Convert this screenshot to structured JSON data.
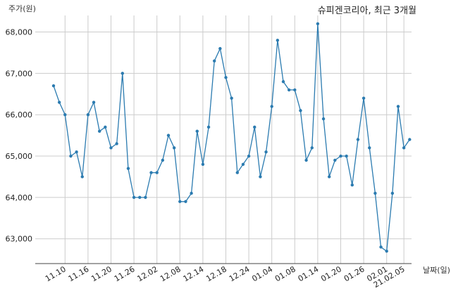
{
  "chart_data": {
    "type": "line",
    "title": "슈피겐코리아, 최근 3개월",
    "ylabel": "주가(원)",
    "xlabel": "날짜(일)",
    "ylim": [
      62400,
      68400
    ],
    "yticks": [
      63000,
      64000,
      65000,
      66000,
      67000,
      68000
    ],
    "ytick_labels": [
      "63,000",
      "64,000",
      "65,000",
      "66,000",
      "67,000",
      "68,000"
    ],
    "xticks": [
      "11.10",
      "11.16",
      "11.20",
      "11.26",
      "12.02",
      "12.08",
      "12.14",
      "12.18",
      "12.24",
      "01.04",
      "01.08",
      "01.14",
      "01.20",
      "01.26",
      "02.01",
      "21.02.05"
    ],
    "xtick_indices": [
      2,
      6,
      10,
      14,
      18,
      22,
      26,
      30,
      34,
      38,
      42,
      46,
      50,
      54,
      58,
      61
    ],
    "grid": true,
    "series": [
      {
        "values": [
          66700,
          66300,
          66000,
          65000,
          65100,
          64500,
          66000,
          66300,
          65600,
          65700,
          65200,
          65300,
          67000,
          64700,
          64000,
          64000,
          64000,
          64600,
          64600,
          64900,
          65500,
          65200,
          63900,
          63900,
          64100,
          65600,
          64800,
          65700,
          67300,
          67600,
          66900,
          66400,
          64600,
          64800,
          65000,
          65700,
          64500,
          65100,
          66200,
          67800,
          66800,
          66600,
          66600,
          66100,
          64900,
          65200,
          68200,
          65900,
          64500,
          64900,
          65000,
          65000,
          64300,
          65400,
          66400,
          65200,
          64100,
          62800,
          62700,
          64100,
          66200,
          65200,
          65400
        ],
        "color": "#2b7bb0"
      }
    ]
  }
}
